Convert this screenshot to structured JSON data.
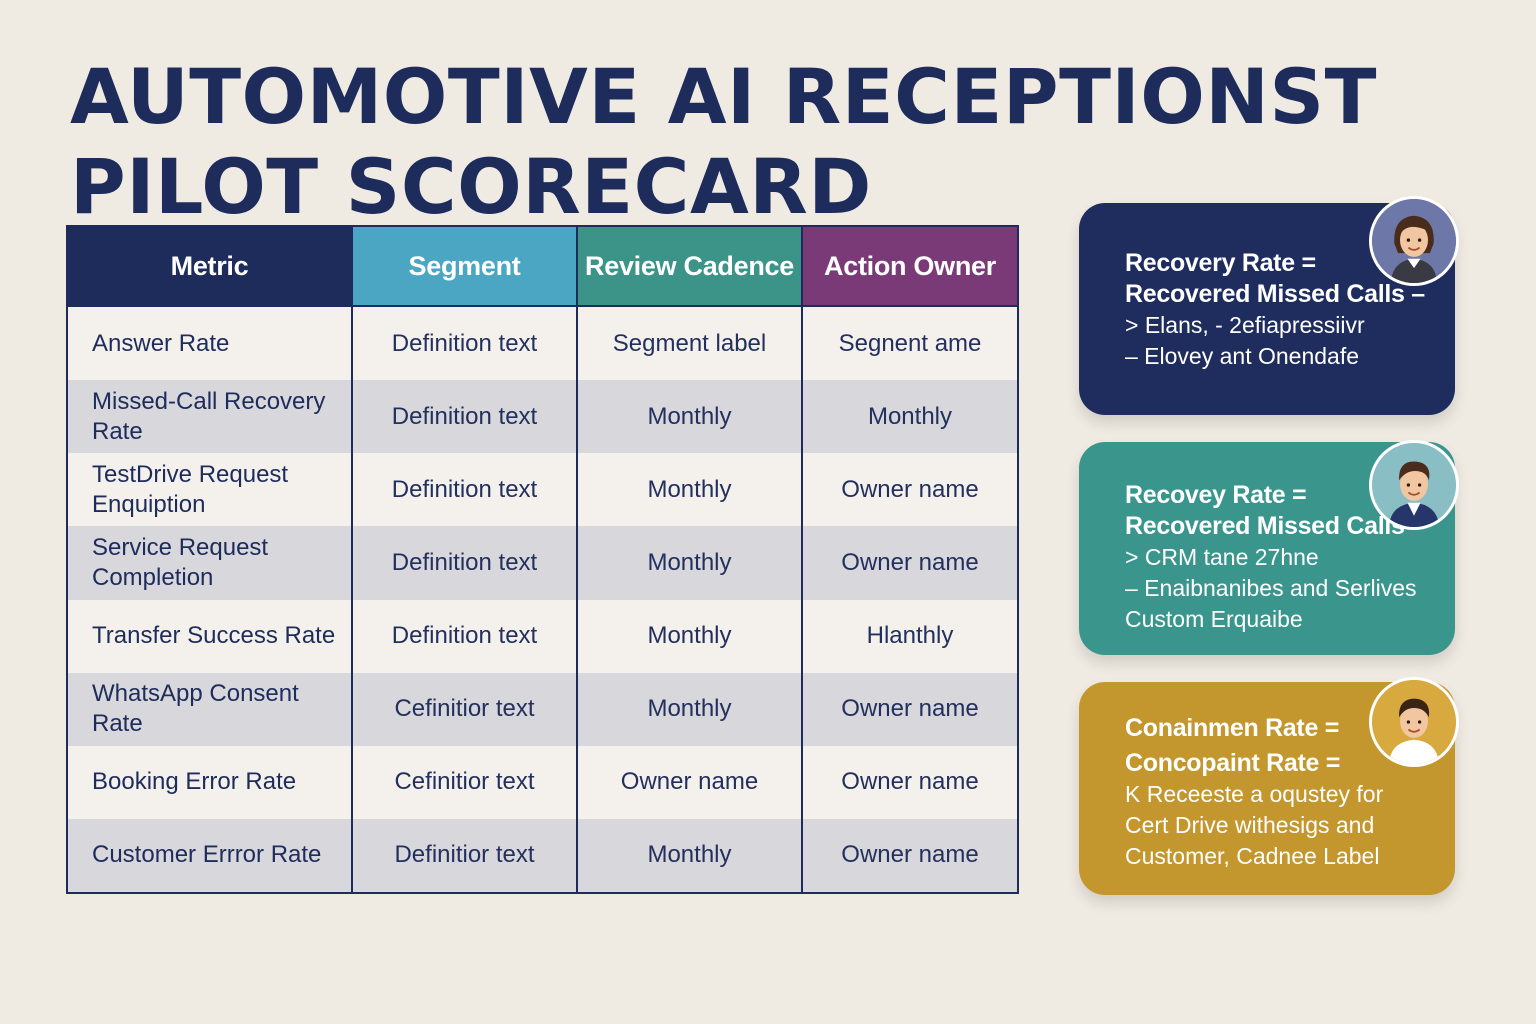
{
  "title": {
    "line1": "AUTOMOTIVE AI RECEPTIONST",
    "line2": "PILOT SCORECARD"
  },
  "table": {
    "headers": [
      "Metric",
      "Segment",
      "Review Cadence",
      "Action Owner"
    ],
    "header_colors": [
      "#1e2c5c",
      "#4ba6c4",
      "#3c9388",
      "#7a3a78"
    ],
    "rows": [
      [
        "Answer Rate",
        "Definition text",
        "Segment label",
        "Segnent ame"
      ],
      [
        "Missed-Call Recovery Rate",
        "Definition text",
        "Monthly",
        "Monthly"
      ],
      [
        "TestDrive Request Enquiption",
        "Definition text",
        "Monthly",
        "Owner name"
      ],
      [
        "Service Request Completion",
        "Definition text",
        "Monthly",
        "Owner name"
      ],
      [
        "Transfer Success Rate",
        "Definition text",
        "Monthly",
        "Hlanthly"
      ],
      [
        "WhatsApp Consent Rate",
        "Cefinitior text",
        "Monthly",
        "Owner name"
      ],
      [
        "Booking Error Rate",
        "Cefinitior text",
        "Owner name",
        "Owner name"
      ],
      [
        "Customer Errror Rate",
        "Definitior text",
        "Monthly",
        "Owner name"
      ]
    ]
  },
  "cards": [
    {
      "color": "#1f2d5e",
      "lines": [
        "Recovery Rate =",
        "Recovered Missed Calls –",
        "> Elans, - 2efiapressiivr",
        "– Elovey ant Onendafe"
      ],
      "avatar_icon": "woman-avatar-icon"
    },
    {
      "color": "#3a968d",
      "lines": [
        "Recovey Rate =",
        "Recovered Missed Calls",
        "> CRM  tane 27hne",
        "– Enaibnanibes and Serlives",
        "Custom Erquaibe"
      ],
      "avatar_icon": "man-avatar-icon"
    },
    {
      "color": "#c3962e",
      "lines": [
        "Conainmen Rate =",
        "Concopaint Rate =",
        "K Receeste a oqustey for",
        "Cert Drive withesigs and",
        "Customer, Cadnee Label"
      ],
      "avatar_icon": "person-avatar-icon"
    }
  ]
}
